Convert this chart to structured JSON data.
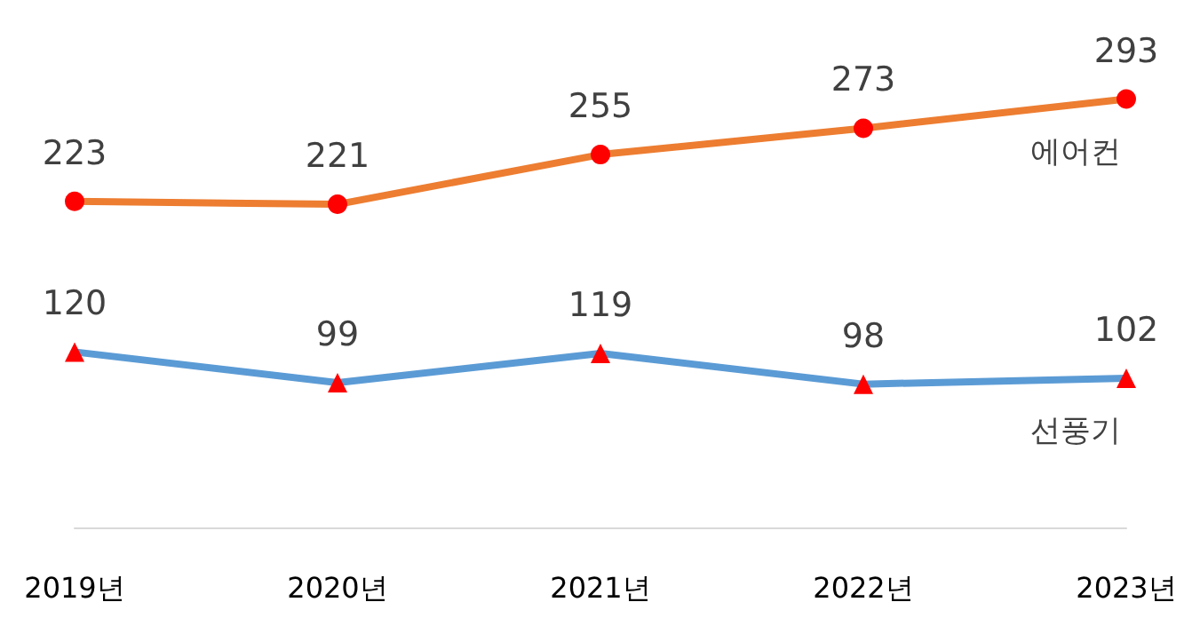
{
  "chart_data": {
    "type": "line",
    "categories": [
      "2019년",
      "2020년",
      "2021년",
      "2022년",
      "2023년"
    ],
    "series": [
      {
        "name": "에어컨",
        "color": "#ed7d31",
        "marker": "circle",
        "values": [
          223,
          221,
          255,
          273,
          293
        ]
      },
      {
        "name": "선풍기",
        "color": "#5b9bd5",
        "marker": "triangle",
        "values": [
          120,
          99,
          119,
          98,
          102
        ]
      }
    ],
    "tick_labels": "x",
    "data_labels": true,
    "grid": false,
    "legend": false
  }
}
